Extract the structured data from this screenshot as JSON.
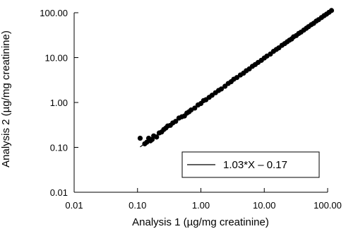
{
  "chart_data": {
    "type": "scatter",
    "title": "",
    "xlabel": "Analysis 1 (µg/mg creatinine)",
    "ylabel": "Analysis 2 (µg/mg creatinine)",
    "x_scale": "log",
    "y_scale": "log",
    "xlim": [
      0.01,
      100
    ],
    "ylim": [
      0.01,
      100
    ],
    "x_ticks": [
      "0.01",
      "0.10",
      "1.00",
      "10.00",
      "100.00"
    ],
    "y_ticks": [
      "0.01",
      "0.10",
      "1.00",
      "10.00",
      "100.00"
    ],
    "grid": false,
    "legend": {
      "placement": "bottom-right",
      "label": "1.03*X – 0.17"
    },
    "fit_line": {
      "label": "1.03*X – 0.17",
      "x_range": [
        0.11,
        120
      ]
    },
    "point_color": "#000000",
    "points": [
      [
        0.11,
        0.16
      ],
      [
        0.13,
        0.12
      ],
      [
        0.14,
        0.13
      ],
      [
        0.15,
        0.16
      ],
      [
        0.16,
        0.14
      ],
      [
        0.17,
        0.15
      ],
      [
        0.18,
        0.18
      ],
      [
        0.2,
        0.17
      ],
      [
        0.22,
        0.21
      ],
      [
        0.24,
        0.22
      ],
      [
        0.26,
        0.25
      ],
      [
        0.28,
        0.27
      ],
      [
        0.3,
        0.3
      ],
      [
        0.33,
        0.31
      ],
      [
        0.36,
        0.35
      ],
      [
        0.4,
        0.38
      ],
      [
        0.45,
        0.45
      ],
      [
        0.5,
        0.48
      ],
      [
        0.55,
        0.5
      ],
      [
        0.6,
        0.58
      ],
      [
        0.65,
        0.62
      ],
      [
        0.7,
        0.68
      ],
      [
        0.8,
        0.75
      ],
      [
        0.9,
        0.88
      ],
      [
        1.0,
        0.95
      ],
      [
        1.1,
        1.1
      ],
      [
        1.2,
        1.15
      ],
      [
        1.35,
        1.3
      ],
      [
        1.5,
        1.45
      ],
      [
        1.7,
        1.65
      ],
      [
        1.9,
        1.85
      ],
      [
        2.1,
        2.0
      ],
      [
        2.4,
        2.3
      ],
      [
        2.7,
        2.65
      ],
      [
        3.0,
        2.9
      ],
      [
        3.3,
        3.3
      ],
      [
        3.7,
        3.6
      ],
      [
        4.2,
        4.1
      ],
      [
        4.7,
        4.5
      ],
      [
        5.2,
        5.1
      ],
      [
        5.8,
        5.6
      ],
      [
        6.5,
        6.4
      ],
      [
        7.2,
        7.0
      ],
      [
        8.0,
        7.8
      ],
      [
        9.0,
        8.7
      ],
      [
        10.0,
        9.8
      ],
      [
        11.0,
        10.8
      ],
      [
        12.5,
        12.0
      ],
      [
        14.0,
        13.8
      ],
      [
        15.5,
        15.2
      ],
      [
        17.0,
        16.5
      ],
      [
        19.0,
        18.8
      ],
      [
        21.0,
        20.5
      ],
      [
        23.0,
        22.5
      ],
      [
        25.0,
        24.5
      ],
      [
        27.0,
        26.0
      ],
      [
        29.0,
        29.0
      ],
      [
        32.0,
        31.0
      ],
      [
        35.0,
        34.5
      ],
      [
        38.0,
        37.0
      ],
      [
        42.0,
        41.0
      ],
      [
        46.0,
        45.0
      ],
      [
        50.0,
        49.0
      ],
      [
        55.0,
        54.0
      ],
      [
        60.0,
        58.0
      ],
      [
        66.0,
        65.0
      ],
      [
        72.0,
        70.0
      ],
      [
        80.0,
        78.0
      ],
      [
        88.0,
        86.0
      ],
      [
        96.0,
        93.0
      ],
      [
        105.0,
        102.0
      ],
      [
        115.0,
        112.0
      ]
    ]
  }
}
